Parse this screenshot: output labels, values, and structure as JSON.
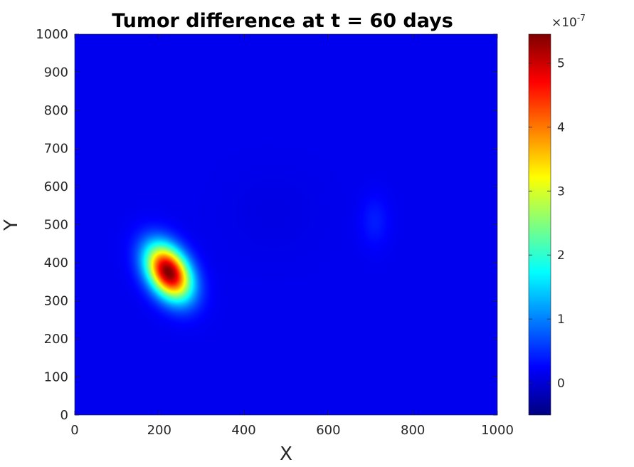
{
  "chart_data": {
    "type": "heatmap",
    "title": "Tumor difference at t = 60 days",
    "xlabel": "X",
    "ylabel": "Y",
    "xlim": [
      0,
      1000
    ],
    "ylim": [
      0,
      1000
    ],
    "xticks": [
      "0",
      "200",
      "400",
      "600",
      "800",
      "1000"
    ],
    "yticks": [
      "0",
      "100",
      "200",
      "300",
      "400",
      "500",
      "600",
      "700",
      "800",
      "900",
      "1000"
    ],
    "colormap": "jet",
    "colorbar": {
      "range": [
        -5e-08,
        5.45e-07
      ],
      "multiplier_base": "×10",
      "multiplier_exponent": "-7",
      "ticks": [
        "0",
        "1",
        "2",
        "3",
        "4",
        "5"
      ],
      "tick_values": [
        0,
        1e-07,
        2e-07,
        3e-07,
        4e-07,
        5e-07
      ]
    },
    "background_value": 1.5e-08,
    "features": [
      {
        "label": "hot spot",
        "center": [
          222,
          375
        ],
        "sigma": [
          32,
          52
        ],
        "rotation_deg": 25,
        "amplitude": 5.35e-07
      },
      {
        "label": "secondary blob",
        "center": [
          710,
          510
        ],
        "sigma": [
          24,
          48
        ],
        "rotation_deg": 0,
        "amplitude": 2.5e-08
      },
      {
        "label": "depression",
        "center": [
          470,
          530
        ],
        "sigma": [
          90,
          90
        ],
        "rotation_deg": 0,
        "amplitude": -6e-09
      }
    ]
  }
}
